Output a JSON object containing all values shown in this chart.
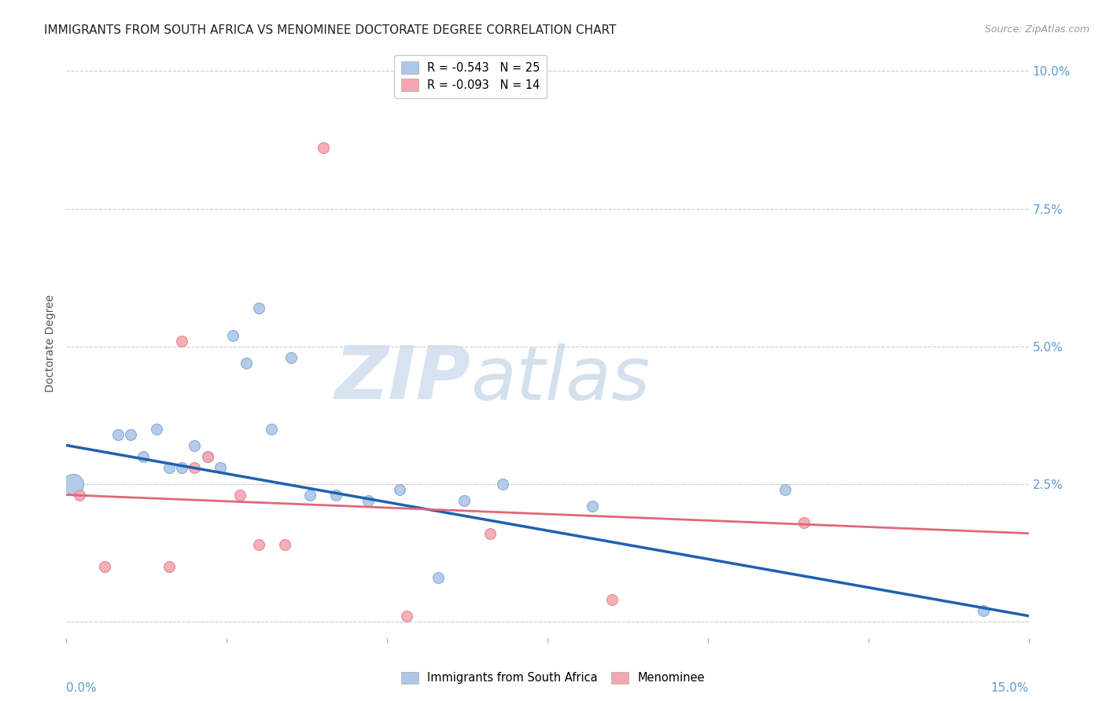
{
  "title": "IMMIGRANTS FROM SOUTH AFRICA VS MENOMINEE DOCTORATE DEGREE CORRELATION CHART",
  "source": "Source: ZipAtlas.com",
  "ylabel": "Doctorate Degree",
  "right_yticklabels": [
    "",
    "2.5%",
    "5.0%",
    "7.5%",
    "10.0%"
  ],
  "right_yticks": [
    0.0,
    0.025,
    0.05,
    0.075,
    0.1
  ],
  "xmin": 0.0,
  "xmax": 0.15,
  "ymin": -0.003,
  "ymax": 0.104,
  "legend_entries": [
    {
      "label": "R = -0.543   N = 25",
      "color": "#aec6e8"
    },
    {
      "label": "R = -0.093   N = 14",
      "color": "#f4a7b0"
    }
  ],
  "blue_scatter": {
    "x": [
      0.001,
      0.008,
      0.01,
      0.012,
      0.014,
      0.016,
      0.018,
      0.02,
      0.022,
      0.024,
      0.026,
      0.028,
      0.03,
      0.032,
      0.035,
      0.038,
      0.042,
      0.047,
      0.052,
      0.058,
      0.062,
      0.068,
      0.082,
      0.112,
      0.143
    ],
    "y": [
      0.025,
      0.034,
      0.034,
      0.03,
      0.035,
      0.028,
      0.028,
      0.032,
      0.03,
      0.028,
      0.052,
      0.047,
      0.057,
      0.035,
      0.048,
      0.023,
      0.023,
      0.022,
      0.024,
      0.008,
      0.022,
      0.025,
      0.021,
      0.024,
      0.002
    ],
    "color": "#aec6e8",
    "edge_color": "#7aa8d0",
    "size": 100,
    "large_size": 350,
    "large_idx": 0
  },
  "pink_scatter": {
    "x": [
      0.002,
      0.006,
      0.016,
      0.018,
      0.02,
      0.022,
      0.027,
      0.03,
      0.034,
      0.04,
      0.053,
      0.066,
      0.085,
      0.115
    ],
    "y": [
      0.023,
      0.01,
      0.01,
      0.051,
      0.028,
      0.03,
      0.023,
      0.014,
      0.014,
      0.086,
      0.001,
      0.016,
      0.004,
      0.018
    ],
    "color": "#f4a7b0",
    "edge_color": "#e08090",
    "size": 100
  },
  "blue_line": {
    "x": [
      0.0,
      0.15
    ],
    "y": [
      0.032,
      0.001
    ],
    "color": "#2060b0",
    "linewidth": 2.5
  },
  "pink_line": {
    "x": [
      0.0,
      0.15
    ],
    "y": [
      0.023,
      0.016
    ],
    "color": "#e06878",
    "linewidth": 2.0
  },
  "watermark_zip": "ZIP",
  "watermark_atlas": "atlas",
  "grid_color": "#cccccc",
  "background_color": "#ffffff",
  "title_fontsize": 11,
  "axis_label_fontsize": 10,
  "tick_fontsize": 11,
  "source_fontsize": 9
}
